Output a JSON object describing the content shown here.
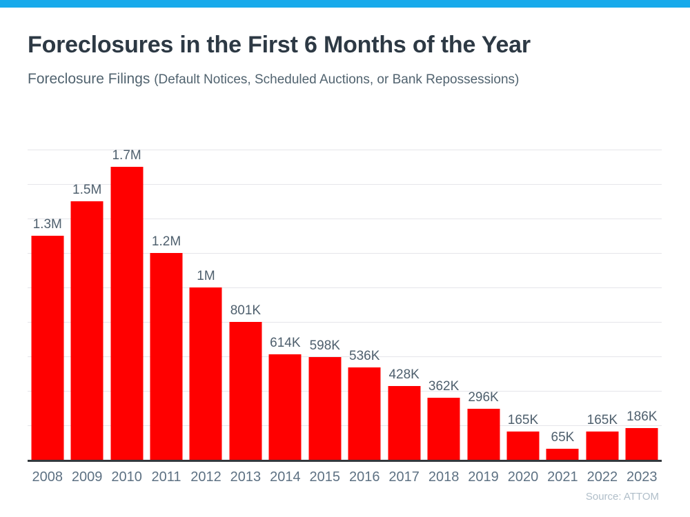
{
  "header": {
    "subtitle_main": "Foreclosure Filings ",
    "subtitle_paren": "(Default Notices, Scheduled Auctions, or Bank Repossessions)"
  },
  "chart_data": {
    "type": "bar",
    "title": "Foreclosures in the First 6 Months of the Year",
    "subtitle": "Foreclosure Filings (Default Notices, Scheduled Auctions, or Bank Repossessions)",
    "categories": [
      "2008",
      "2009",
      "2010",
      "2011",
      "2012",
      "2013",
      "2014",
      "2015",
      "2016",
      "2017",
      "2018",
      "2019",
      "2020",
      "2021",
      "2022",
      "2023"
    ],
    "values": [
      1300000,
      1500000,
      1700000,
      1200000,
      1000000,
      801000,
      614000,
      598000,
      536000,
      428000,
      362000,
      296000,
      165000,
      65000,
      165000,
      186000
    ],
    "value_labels": [
      "1.3M",
      "1.5M",
      "1.7M",
      "1.2M",
      "1M",
      "801K",
      "614K",
      "598K",
      "536K",
      "428K",
      "362K",
      "296K",
      "165K",
      "65K",
      "165K",
      "186K"
    ],
    "xlabel": "",
    "ylabel": "",
    "ylim": [
      0,
      1800000
    ],
    "gridline_step": 200000,
    "grid": "horizontal",
    "legend": "none",
    "source": "Source: ATTOM"
  },
  "colors": {
    "top_bar": "#18AAEB",
    "bar": "#FF0000",
    "title": "#2D3944",
    "subtitle": "#51636F",
    "value_label": "#4E5F6D",
    "year_label": "#5D7183",
    "gridline": "#E5E5EA",
    "axis": "#33383D",
    "source": "#B0BEC9"
  }
}
